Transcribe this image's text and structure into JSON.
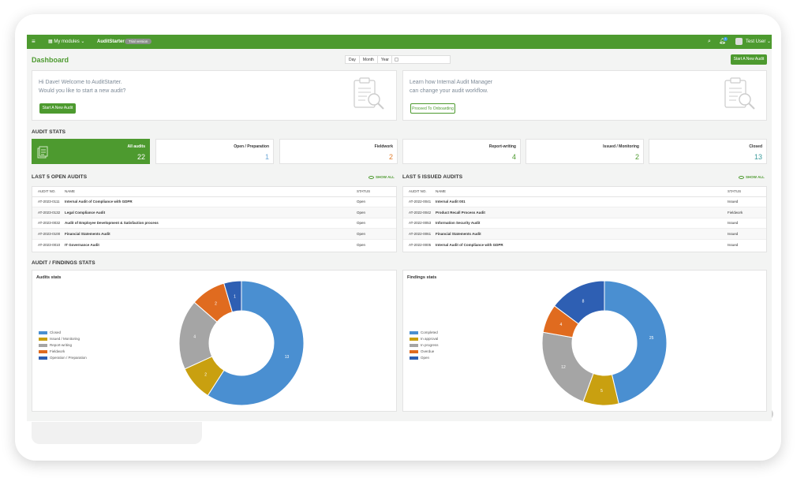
{
  "topbar": {
    "modules_label": "My modules",
    "app_name": "AuditStarter",
    "trial_label": "Trial version",
    "user_name": "Test User",
    "notification_count": "1"
  },
  "dashboard": {
    "title": "Dashboard",
    "range_options": [
      "Day",
      "Month",
      "Year"
    ],
    "start_button": "Start A New Audit"
  },
  "welcome": {
    "line1": "Hi Dave! Welcome to AuditStarter.",
    "line2": "Would you like to start a new audit?",
    "button": "Start A New Audit"
  },
  "onboarding": {
    "line1": "Learn how Internal Audit Manager",
    "line2": "can change your audit workflow.",
    "button": "Proceed To Onboarding"
  },
  "audit_stats": {
    "title": "AUDIT STATS",
    "cards": [
      {
        "label": "All audits",
        "value": "22",
        "color": "#ffffff"
      },
      {
        "label": "Open / Preparation",
        "value": "1",
        "color": "#6fa8d8"
      },
      {
        "label": "Fieldwork",
        "value": "2",
        "color": "#e07b2a"
      },
      {
        "label": "Report-writing",
        "value": "4",
        "color": "#4d9a2f"
      },
      {
        "label": "Issued / Monitoring",
        "value": "2",
        "color": "#4d9a2f"
      },
      {
        "label": "Closed",
        "value": "13",
        "color": "#3a9a9a"
      }
    ]
  },
  "open_audits": {
    "title": "LAST 5 OPEN AUDITS",
    "show_all": "SHOW ALL",
    "headers": [
      "AUDIT NO.",
      "NAME",
      "STATUS"
    ],
    "rows": [
      {
        "no": "AT-2023-0111",
        "name": "Internal Audit of Compliance with GDPR",
        "status": "Open"
      },
      {
        "no": "AT-2023-0132",
        "name": "Legal Compliance Audit",
        "status": "Open"
      },
      {
        "no": "AT-2023-0032",
        "name": "Audit of Employee Development & Satisfaction process",
        "status": "Open"
      },
      {
        "no": "AT-2023-0100",
        "name": "Financial Statements Audit",
        "status": "Open"
      },
      {
        "no": "AT-2023-0010",
        "name": "IT Governance Audit",
        "status": "Open"
      }
    ]
  },
  "issued_audits": {
    "title": "LAST 5 ISSUED AUDITS",
    "show_all": "SHOW ALL",
    "headers": [
      "AUDIT NO.",
      "NAME",
      "STATUS"
    ],
    "rows": [
      {
        "no": "AT-2022-0041",
        "name": "Internal Audit 001",
        "status": "Issued"
      },
      {
        "no": "AT-2022-0042",
        "name": "Product Recall Process Audit",
        "status": "Fieldwork"
      },
      {
        "no": "AT-2022-0053",
        "name": "Information Security Audit",
        "status": "Issued"
      },
      {
        "no": "AT-2022-0061",
        "name": "Financial Statements Audit",
        "status": "Issued"
      },
      {
        "no": "AT-2022-0005",
        "name": "Internal Audit of Compliance with GDPR",
        "status": "Issued"
      }
    ]
  },
  "findings_section": {
    "title": "AUDIT / FINDINGS STATS"
  },
  "chart_data": [
    {
      "type": "pie",
      "title": "Audits stats",
      "legend": "left",
      "categories": [
        "Closed",
        "Issued / Monitoring",
        "Report-writing",
        "Fieldwork",
        "Operation / Preparation"
      ],
      "values": [
        13,
        2,
        4,
        2,
        1
      ],
      "colors": [
        "#4a8fd1",
        "#c9a010",
        "#a5a5a5",
        "#e06b1f",
        "#2e5fb3"
      ]
    },
    {
      "type": "pie",
      "title": "Findings stats",
      "legend": "left",
      "categories": [
        "Completed",
        "In approval",
        "In progress",
        "Overdue",
        "Open"
      ],
      "values": [
        25,
        5,
        12,
        4,
        8
      ],
      "colors": [
        "#4a8fd1",
        "#c9a010",
        "#a5a5a5",
        "#e06b1f",
        "#2e5fb3"
      ]
    }
  ]
}
